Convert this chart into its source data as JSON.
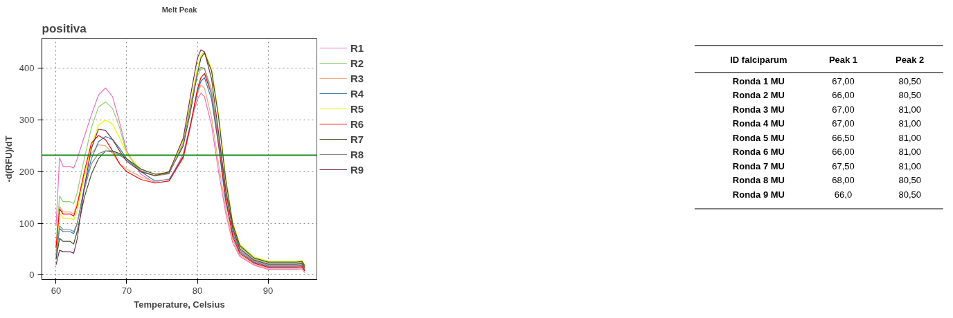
{
  "chart_data": [
    {
      "type": "line",
      "title": "Melt Peak",
      "xlabel": "Temperature, Celsius",
      "ylabel": "-d(RFU)/dT",
      "annotations": [
        "positiva"
      ],
      "x": [
        60,
        60.5,
        61,
        62,
        62.5,
        63,
        64,
        65,
        66,
        67,
        68,
        69,
        70,
        72,
        74,
        76,
        78,
        79,
        80,
        80.5,
        81,
        82,
        83,
        84,
        85,
        86,
        88,
        90,
        92,
        94,
        94.8,
        95.2
      ],
      "xlim": [
        58,
        96.9
      ],
      "ylim": [
        -9,
        458
      ],
      "xticks": [
        60,
        70,
        80,
        90
      ],
      "yticks": [
        0,
        100,
        200,
        300,
        400
      ],
      "grid": true,
      "legend": "right",
      "line_style": "solid",
      "ref_lines": [
        {
          "axis": "y",
          "value": 232,
          "color": "#1a8a1a"
        }
      ],
      "series": [
        {
          "name": "R1",
          "color": "#ee6fc0",
          "values": [
            95,
            227,
            210,
            210,
            207,
            225,
            268,
            310,
            348,
            362,
            345,
            295,
            240,
            195,
            178,
            182,
            235,
            290,
            340,
            352,
            345,
            290,
            200,
            120,
            62,
            36,
            19,
            11,
            11,
            11,
            12,
            4
          ]
        },
        {
          "name": "R2",
          "color": "#8fcf6f",
          "values": [
            60,
            153,
            142,
            142,
            138,
            160,
            225,
            285,
            325,
            335,
            322,
            285,
            235,
            200,
            192,
            198,
            262,
            330,
            385,
            398,
            400,
            360,
            270,
            170,
            94,
            54,
            31,
            23,
            23,
            23,
            24,
            16
          ]
        },
        {
          "name": "R3",
          "color": "#f4a97a",
          "values": [
            55,
            133,
            122,
            122,
            118,
            140,
            195,
            235,
            252,
            250,
            235,
            215,
            205,
            190,
            180,
            186,
            225,
            285,
            350,
            368,
            362,
            305,
            215,
            130,
            68,
            39,
            21,
            13,
            13,
            13,
            14,
            6
          ]
        },
        {
          "name": "R4",
          "color": "#2e75b6",
          "values": [
            35,
            90,
            84,
            84,
            80,
            100,
            170,
            225,
            258,
            268,
            262,
            245,
            225,
            200,
            182,
            185,
            230,
            290,
            355,
            375,
            382,
            340,
            250,
            142,
            80,
            45,
            25,
            17,
            17,
            17,
            18,
            10
          ]
        },
        {
          "name": "R5",
          "color": "#f2f200",
          "values": [
            45,
            120,
            110,
            110,
            106,
            125,
            190,
            250,
            290,
            300,
            292,
            265,
            235,
            205,
            195,
            200,
            260,
            330,
            400,
            425,
            432,
            400,
            310,
            190,
            102,
            60,
            35,
            27,
            27,
            27,
            28,
            20
          ]
        },
        {
          "name": "R6",
          "color": "#ff0000",
          "values": [
            52,
            128,
            118,
            118,
            114,
            135,
            200,
            255,
            270,
            262,
            240,
            215,
            200,
            185,
            178,
            182,
            228,
            288,
            360,
            382,
            390,
            350,
            255,
            150,
            74,
            42,
            23,
            15,
            15,
            15,
            16,
            8
          ]
        },
        {
          "name": "R7",
          "color": "#375623",
          "values": [
            30,
            71,
            65,
            65,
            60,
            85,
            150,
            195,
            225,
            240,
            240,
            235,
            225,
            205,
            195,
            198,
            250,
            315,
            390,
            420,
            430,
            395,
            305,
            185,
            98,
            57,
            33,
            25,
            25,
            25,
            26,
            18
          ]
        },
        {
          "name": "R8",
          "color": "#888888",
          "values": [
            40,
            95,
            88,
            88,
            84,
            100,
            165,
            215,
            235,
            240,
            238,
            232,
            222,
            202,
            192,
            196,
            255,
            325,
            392,
            402,
            400,
            350,
            260,
            160,
            86,
            48,
            27,
            19,
            19,
            19,
            20,
            12
          ]
        },
        {
          "name": "R9",
          "color": "#7b3046",
          "values": [
            20,
            48,
            45,
            45,
            42,
            70,
            170,
            245,
            282,
            280,
            262,
            240,
            220,
            200,
            192,
            200,
            265,
            345,
            420,
            436,
            432,
            380,
            275,
            165,
            90,
            51,
            29,
            21,
            21,
            21,
            22,
            14
          ]
        }
      ]
    },
    {
      "type": "other",
      "annotations": [
        "ID falciparum"
      ],
      "categories": [
        "Ronda 1 MU",
        "Ronda 2 MU",
        "Ronda 3 MU",
        "Ronda 4 MU",
        "Ronda 5 MU",
        "Ronda 6 MU",
        "Ronda 7 MU",
        "Ronda 8 MU",
        "Ronda 9 MU"
      ],
      "series": [
        {
          "name": "Peak 1",
          "values": [
            67,
            66,
            67,
            67,
            66.5,
            66,
            67.5,
            68,
            66
          ],
          "value_labels": [
            "67,00",
            "66,00",
            "67,00",
            "67,00",
            "66,50",
            "66,00",
            "67,50",
            "68,00",
            "66,0"
          ]
        },
        {
          "name": "Peak 2",
          "values": [
            80.5,
            80.5,
            81,
            81,
            81,
            81,
            81,
            80.5,
            80.5
          ],
          "value_labels": [
            "80,50",
            "80,50",
            "81,00",
            "81,00",
            "81,00",
            "81,00",
            "81,00",
            "80,50",
            "80,50"
          ]
        }
      ]
    }
  ]
}
